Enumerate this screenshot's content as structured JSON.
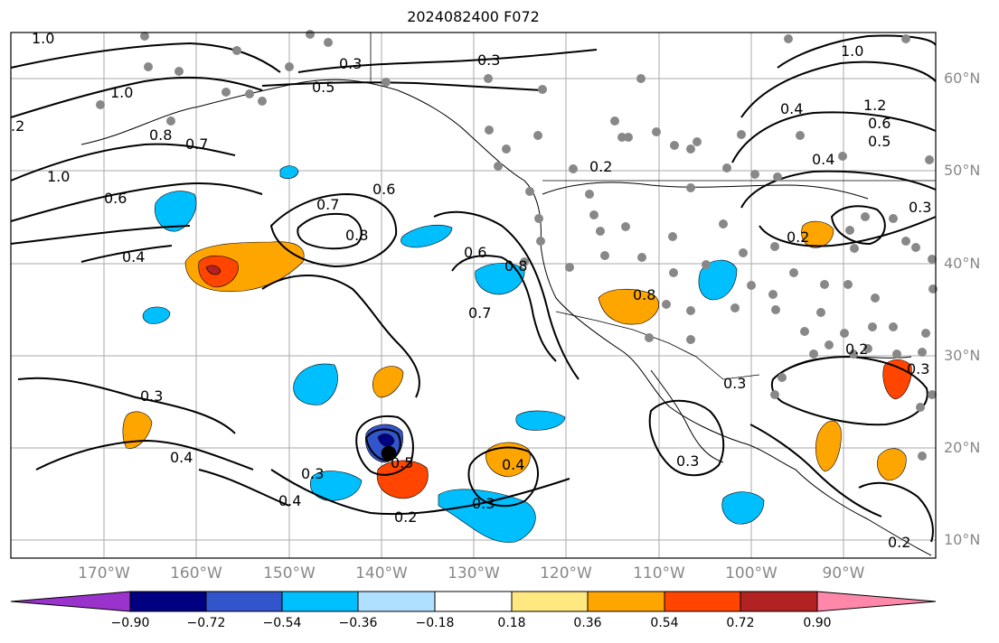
{
  "title": "2024082400 F072",
  "lat_labels": [
    "60°N",
    "50°N",
    "40°N",
    "30°N",
    "20°N",
    "10°N"
  ],
  "lon_labels": [
    "170°W",
    "160°W",
    "150°W",
    "140°W",
    "130°W",
    "120°W",
    "110°W",
    "100°W",
    "90°W"
  ],
  "colorbar": {
    "ticks": [
      "−0.90",
      "−0.72",
      "−0.54",
      "−0.36",
      "−0.18",
      "0.18",
      "0.36",
      "0.54",
      "0.72",
      "0.90"
    ],
    "colors": [
      "#9933cc",
      "#000080",
      "#3355cc",
      "#00bfff",
      "#afe0ff",
      "#ffffff",
      "#ffe880",
      "#ffa500",
      "#ff4500",
      "#b22222",
      "#ff88aa"
    ]
  },
  "contour_labels": [
    "1.0",
    "1.0",
    ".2",
    "0.8",
    "0.7",
    "1.0",
    "0.6",
    "0.4",
    "0.3",
    "0.5",
    "0.3",
    "0.7",
    "0.8",
    "0.6",
    "0.6",
    "0.8",
    "0.7",
    "0.2",
    "0.3",
    "0.4",
    "0.3",
    "0.5",
    "0.4",
    "0.3",
    "0.2",
    "0.3",
    "0.4",
    "1.0",
    "0.4",
    "1.2",
    "0.6",
    "0.5",
    "0.4",
    "0.2",
    "0.3",
    "0.2",
    "0.3",
    "0.2",
    "0.3",
    "0.8"
  ]
}
